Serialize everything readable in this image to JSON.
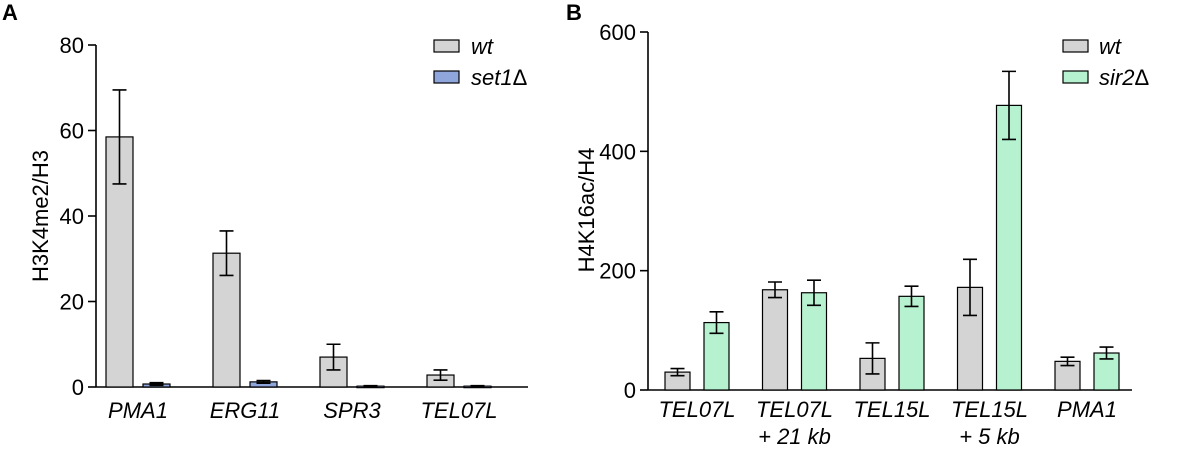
{
  "chart_data": [
    {
      "panel": "A",
      "type": "bar",
      "ylabel": "H3K4me2/H3",
      "xlabel": "",
      "ylim": [
        0,
        80
      ],
      "yticks": [
        0,
        20,
        40,
        60,
        80
      ],
      "categories": [
        [
          "PMA1"
        ],
        [
          "ERG11"
        ],
        [
          "SPR3"
        ],
        [
          "TEL07L"
        ]
      ],
      "legend_position": "top-right",
      "series": [
        {
          "name": "wt",
          "delta": "",
          "color": "#d4d4d4",
          "values": [
            58.5,
            31.3,
            7.0,
            2.8
          ],
          "errors": [
            11,
            5.2,
            3.0,
            1.2
          ]
        },
        {
          "name": "set1",
          "delta": "Δ",
          "color": "#8fa6dc",
          "values": [
            0.7,
            1.2,
            0.2,
            0.2
          ],
          "errors": [
            0.3,
            0.3,
            0.1,
            0.1
          ]
        }
      ]
    },
    {
      "panel": "B",
      "type": "bar",
      "ylabel": "H4K16ac/H4",
      "xlabel": "",
      "ylim": [
        0,
        600
      ],
      "yticks": [
        0,
        200,
        400,
        600
      ],
      "categories": [
        [
          "TEL07L"
        ],
        [
          "TEL07L",
          "+ 21 kb"
        ],
        [
          "TEL15L"
        ],
        [
          "TEL15L",
          "+ 5 kb"
        ],
        [
          "PMA1"
        ]
      ],
      "legend_position": "top-right",
      "series": [
        {
          "name": "wt",
          "delta": "",
          "color": "#d4d4d4",
          "values": [
            30,
            168,
            53,
            172,
            48
          ],
          "errors": [
            6,
            13,
            26,
            47,
            7
          ]
        },
        {
          "name": "sir2",
          "delta": "Δ",
          "color": "#b6f2cf",
          "values": [
            113,
            163,
            157,
            477,
            62
          ],
          "errors": [
            18,
            21,
            17,
            57,
            10
          ]
        }
      ]
    }
  ]
}
